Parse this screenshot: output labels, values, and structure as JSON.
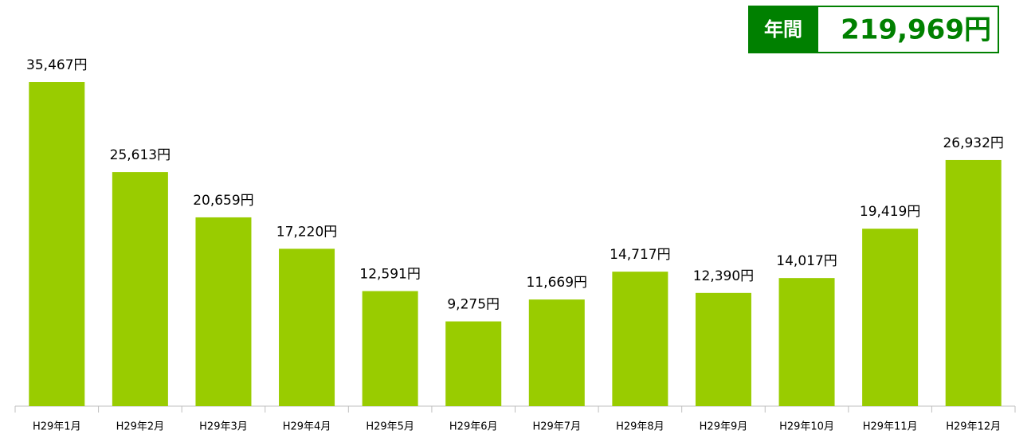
{
  "chart_data": {
    "type": "bar",
    "total_label": "年間",
    "total_value": "219,969円",
    "categories": [
      "H29年1月",
      "H29年2月",
      "H29年3月",
      "H29年4月",
      "H29年5月",
      "H29年6月",
      "H29年7月",
      "H29年8月",
      "H29年9月",
      "H29年10月",
      "H29年11月",
      "H29年12月"
    ],
    "values": [
      35467,
      25613,
      20659,
      17220,
      12591,
      9275,
      11669,
      14717,
      12390,
      14017,
      19419,
      26932
    ],
    "value_labels": [
      "35,467円",
      "25,613円",
      "20,659円",
      "17,220円",
      "12,591円",
      "9,275円",
      "11,669円",
      "14,717円",
      "12,390円",
      "14,017円",
      "19,419円",
      "26,932円"
    ],
    "color": "#99cc00",
    "ylim": [
      0,
      40000
    ]
  }
}
